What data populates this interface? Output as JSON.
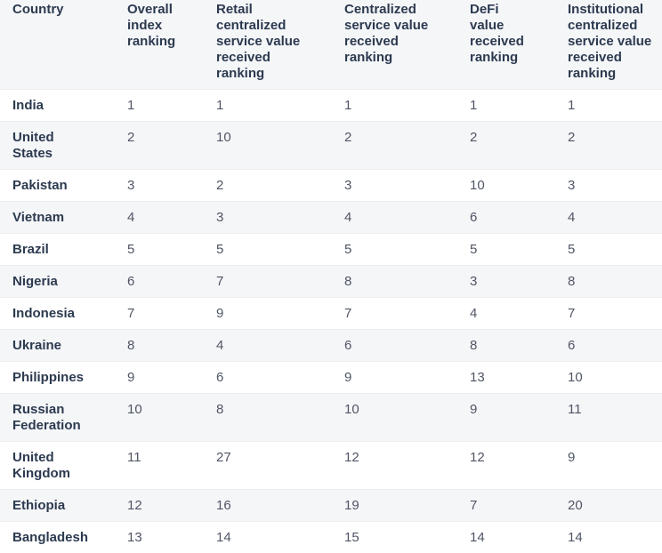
{
  "table": {
    "header": [
      "Country",
      "Overall index ranking",
      "Retail centralized service value received ranking",
      "Centralized service value received ranking",
      "DeFi value received ranking",
      "Institutional centralized service value received ranking"
    ],
    "rows": [
      [
        "India",
        1,
        1,
        1,
        1,
        1
      ],
      [
        "United States",
        2,
        10,
        2,
        2,
        2
      ],
      [
        "Pakistan",
        3,
        2,
        3,
        10,
        3
      ],
      [
        "Vietnam",
        4,
        3,
        4,
        6,
        4
      ],
      [
        "Brazil",
        5,
        5,
        5,
        5,
        5
      ],
      [
        "Nigeria",
        6,
        7,
        8,
        3,
        8
      ],
      [
        "Indonesia",
        7,
        9,
        7,
        4,
        7
      ],
      [
        "Ukraine",
        8,
        4,
        6,
        8,
        6
      ],
      [
        "Philippines",
        9,
        6,
        9,
        13,
        10
      ],
      [
        "Russian Federation",
        10,
        8,
        10,
        9,
        11
      ],
      [
        "United Kingdom",
        11,
        27,
        12,
        12,
        9
      ],
      [
        "Ethiopia",
        12,
        16,
        19,
        7,
        20
      ],
      [
        "Bangladesh",
        13,
        14,
        15,
        14,
        14
      ]
    ]
  }
}
